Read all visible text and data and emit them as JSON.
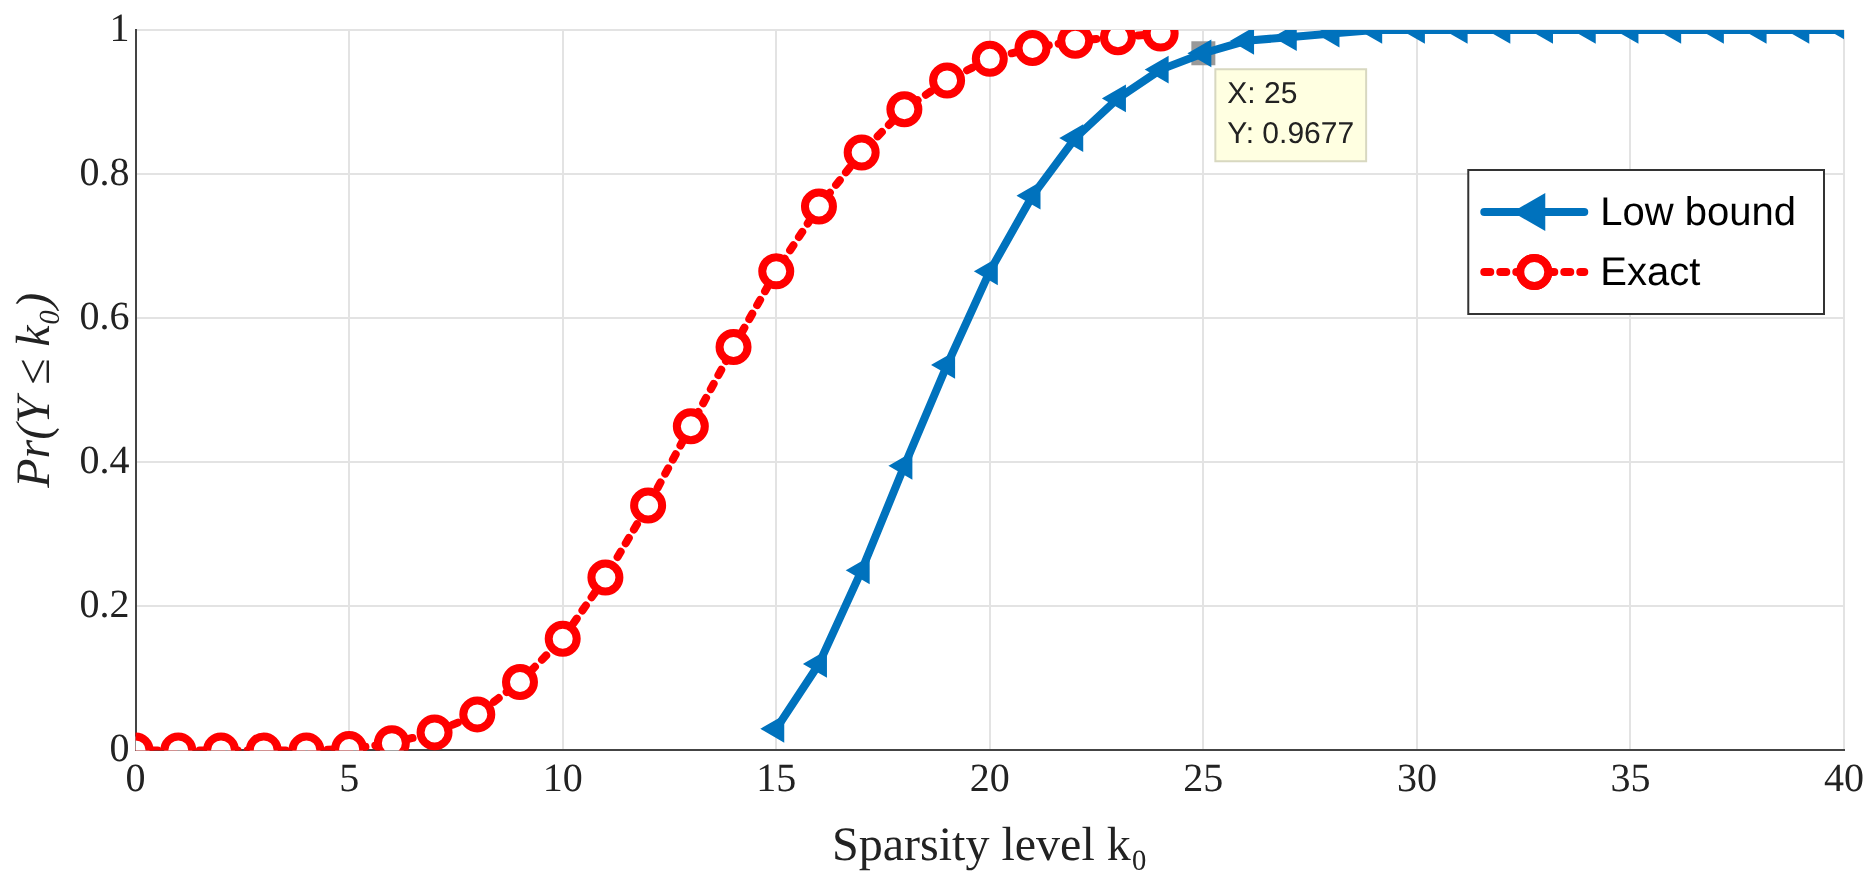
{
  "chart_data": {
    "type": "line",
    "xlabel": "Sparsity level k₀",
    "ylabel": "Pr(Y ≤ k₀)",
    "xlim": [
      0,
      40
    ],
    "xticks": [
      0,
      5,
      10,
      15,
      20,
      25,
      30,
      35,
      40
    ],
    "ylim": [
      0,
      1
    ],
    "yticks": [
      0,
      0.2,
      0.4,
      0.6,
      0.8,
      1
    ],
    "grid": true,
    "legend": "top right",
    "series": [
      {
        "name": "Low bound",
        "color": "#0072bd",
        "marker": "triangle",
        "line_style": "solid",
        "x": [
          15,
          16,
          17,
          18,
          19,
          20,
          21,
          22,
          23,
          24,
          25,
          26,
          27,
          28,
          29,
          30,
          31,
          32,
          33,
          34,
          35,
          36,
          37,
          38,
          39,
          40
        ],
        "values": [
          0.03,
          0.12,
          0.25,
          0.395,
          0.535,
          0.665,
          0.77,
          0.85,
          0.905,
          0.945,
          0.9677,
          0.985,
          0.99,
          0.995,
          1,
          1,
          1,
          1,
          1,
          1,
          1,
          1,
          1,
          1,
          1,
          1
        ]
      },
      {
        "name": "Exact",
        "color": "#ff0000",
        "marker": "circle",
        "line_style": "dotted",
        "x": [
          0,
          1,
          2,
          3,
          4,
          5,
          6,
          7,
          8,
          9,
          10,
          11,
          12,
          13,
          14,
          15,
          16,
          17,
          18,
          19,
          20,
          21,
          22,
          23,
          24
        ],
        "values": [
          0,
          0,
          0,
          0,
          0,
          0.002,
          0.01,
          0.025,
          0.05,
          0.095,
          0.155,
          0.24,
          0.34,
          0.45,
          0.56,
          0.665,
          0.755,
          0.83,
          0.89,
          0.93,
          0.96,
          0.975,
          0.985,
          0.99,
          0.995
        ]
      }
    ],
    "annotations": [
      {
        "text": "X: 25\nY: 0.9677",
        "x": 25,
        "y": 0.9677
      }
    ]
  }
}
